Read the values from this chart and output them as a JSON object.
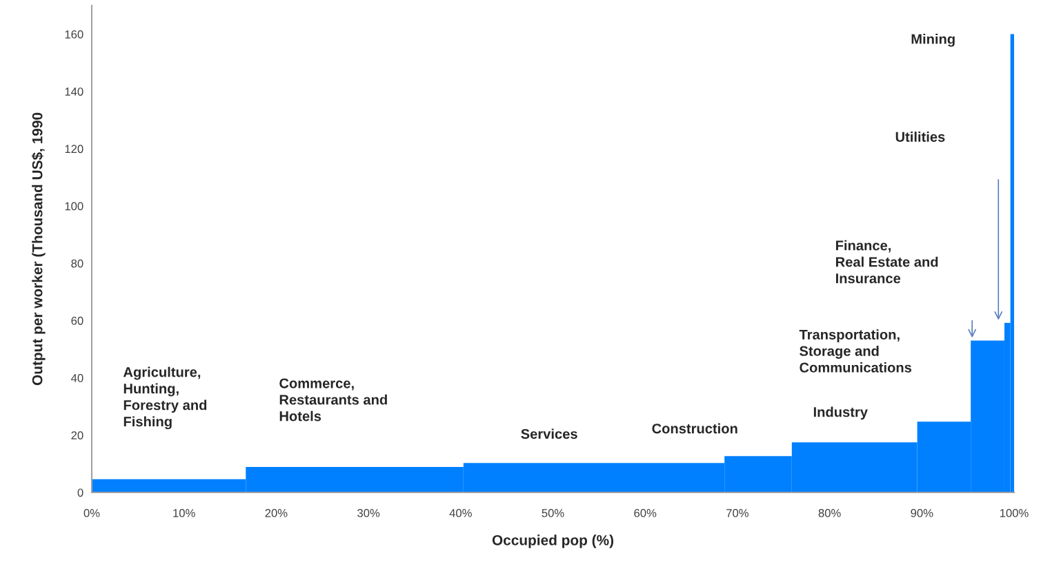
{
  "chart_data": {
    "type": "histogram",
    "xlabel": "Occupied pop (%)",
    "ylabel": "Output per worker (Thousand US$, 1990",
    "bins": [
      0,
      16.7,
      40.3,
      68.6,
      75.9,
      89.5,
      95.3,
      98.95,
      99.6,
      100
    ],
    "values": [
      4.6,
      8.9,
      10.3,
      12.7,
      17.5,
      24.7,
      53,
      59.2,
      160
    ],
    "color": "#0080ff",
    "xlim": [
      0,
      100
    ],
    "ylim": [
      0,
      170
    ],
    "xticks": [
      {
        "value": 0,
        "label": "0%"
      },
      {
        "value": 10,
        "label": "10%"
      },
      {
        "value": 20,
        "label": "20%"
      },
      {
        "value": 30,
        "label": "30%"
      },
      {
        "value": 40,
        "label": "40%"
      },
      {
        "value": 50,
        "label": "50%"
      },
      {
        "value": 60,
        "label": "60%"
      },
      {
        "value": 70,
        "label": "70%"
      },
      {
        "value": 80,
        "label": "80%"
      },
      {
        "value": 90,
        "label": "90%"
      },
      {
        "value": 100,
        "label": "100%"
      }
    ],
    "yticks": [
      0,
      20,
      40,
      60,
      80,
      100,
      120,
      140,
      160
    ],
    "grid": false,
    "annotations": [
      "Agriculture,\nHunting,\nForestry and\nFishing",
      "Commerce,\nRestaurants and\nHotels",
      "Services",
      "Construction",
      "Industry",
      "Transportation,\nStorage and\nCommunications",
      "Finance,\nReal Estate and\nInsurance",
      "Utilities",
      "Mining"
    ]
  }
}
